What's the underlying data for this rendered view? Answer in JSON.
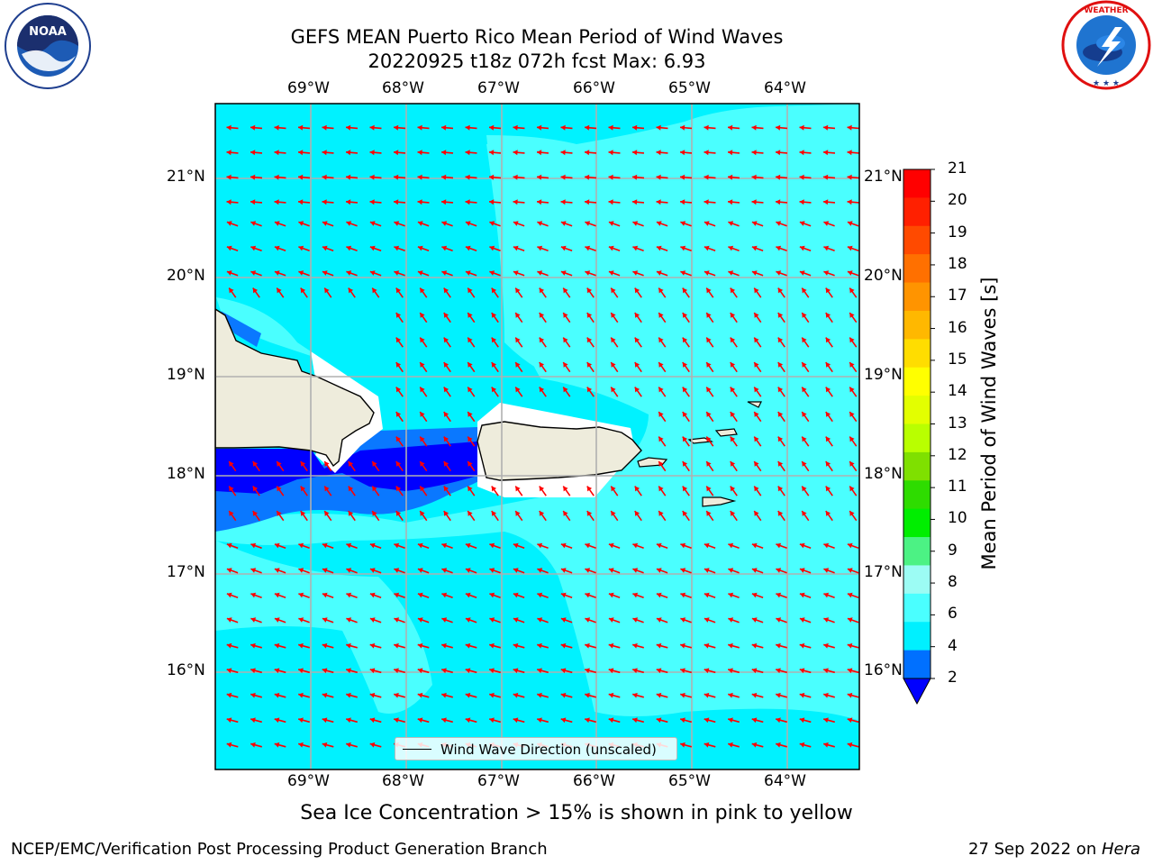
{
  "title": {
    "line1": "GEFS MEAN Puerto Rico Mean Period of Wind Waves",
    "line2": "20220925 t18z 072h fcst   Max: 6.93"
  },
  "map": {
    "lon_labels": [
      "69°W",
      "68°W",
      "67°W",
      "66°W",
      "65°W",
      "64°W"
    ],
    "lat_labels": [
      "21°N",
      "20°N",
      "19°N",
      "18°N",
      "17°N",
      "16°N"
    ],
    "legend_label": "Wind Wave Direction (unscaled)",
    "land_color": "#eeecdc",
    "arrow_color": "#ff0000"
  },
  "colorbar": {
    "label": "Mean Period of Wind Waves [s]",
    "ticks": [
      "21",
      "20",
      "19",
      "18",
      "17",
      "16",
      "15",
      "14",
      "13",
      "12",
      "11",
      "10",
      "9",
      "8",
      "6",
      "4",
      "2"
    ],
    "colors": [
      "#ff0000",
      "#ff2000",
      "#ff4a00",
      "#ff7000",
      "#ff9400",
      "#ffb800",
      "#ffdd00",
      "#ffff00",
      "#e3ff00",
      "#b9ff00",
      "#7fe000",
      "#2edc00",
      "#00ee00",
      "#4cf284",
      "#9cfcf4",
      "#4affff",
      "#00f0ff",
      "#0070ff",
      "#0000ff"
    ]
  },
  "note": "Sea Ice Concentration > 15% is shown in pink to yellow",
  "footer": {
    "left": "NCEP/EMC/Verification Post Processing Product Generation Branch",
    "right_prefix": "27 Sep 2022 on ",
    "right_host": "Hera"
  },
  "logos": {
    "noaa_text": "NOAA",
    "nws_text": "NATIONAL WEATHER SERVICE"
  }
}
